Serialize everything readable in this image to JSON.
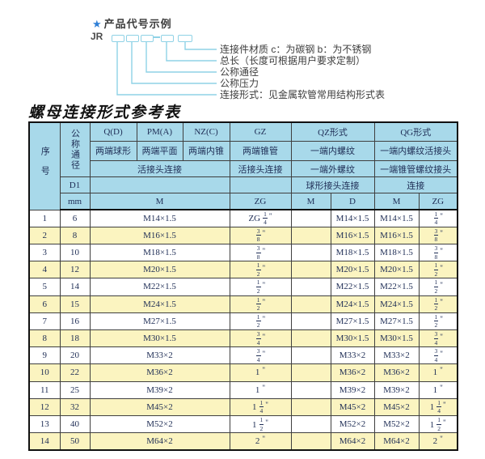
{
  "diagram": {
    "star": "★",
    "title": "产品代号示例",
    "code_prefix": "JR",
    "labels": [
      "连接件材质  c：为碳钢  b：为不锈钢",
      "总长（长度可根据用户要求定制）",
      "公称通径",
      "公称压力",
      "连接形式：见金属软管常用结构形式表"
    ]
  },
  "table_title": "螺母连接形式参考表",
  "table": {
    "header": {
      "seq": "序号",
      "dn": "公称通径",
      "d1": "D1",
      "mm": "mm",
      "col_q_code": "Q(D)",
      "col_q_desc": "两端球形",
      "col_pm_code": "PM(A)",
      "col_pm_desc": "两端平面",
      "col_nz_code": "NZ(C)",
      "col_nz_desc": "两端内锥",
      "qpn_row3": "活接头连接",
      "qpn_unit": "M",
      "gz_code": "GZ",
      "gz_desc": "两端锥管",
      "gz_row3": "活接头连接",
      "gz_unit": "ZG",
      "qz_code": "QZ形式",
      "qz_desc1": "一端内螺纹",
      "qz_desc2": "一端外螺纹",
      "qz_desc3": "球形接头连接",
      "qz_unit_m": "M",
      "qz_unit_d": "D",
      "qg_code": "QG形式",
      "qg_desc1": "一端内螺纹活接头",
      "qg_desc2": "一端锥管螺纹接头",
      "qg_desc3": "连接",
      "qg_unit_m": "M",
      "qg_unit_zg": "ZG"
    },
    "rows": [
      {
        "seq": "1",
        "dn": "6",
        "m": "M14×1.5",
        "gz": "ZG 1/4\"",
        "qz_m": "",
        "qz_d": "M14×1.5",
        "qg_m": "M14×1.5",
        "qg_zg": "1/4\""
      },
      {
        "seq": "2",
        "dn": "8",
        "m": "M16×1.5",
        "gz": "3/8\"",
        "qz_m": "",
        "qz_d": "M16×1.5",
        "qg_m": "M16×1.5",
        "qg_zg": "3/8\""
      },
      {
        "seq": "3",
        "dn": "10",
        "m": "M18×1.5",
        "gz": "3/8\"",
        "qz_m": "",
        "qz_d": "M18×1.5",
        "qg_m": "M18×1.5",
        "qg_zg": "3/8\""
      },
      {
        "seq": "4",
        "dn": "12",
        "m": "M20×1.5",
        "gz": "1/2\"",
        "qz_m": "",
        "qz_d": "M20×1.5",
        "qg_m": "M20×1.5",
        "qg_zg": "1/2\""
      },
      {
        "seq": "5",
        "dn": "14",
        "m": "M22×1.5",
        "gz": "1/2\"",
        "qz_m": "",
        "qz_d": "M22×1.5",
        "qg_m": "M22×1.5",
        "qg_zg": "1/2\""
      },
      {
        "seq": "6",
        "dn": "15",
        "m": "M24×1.5",
        "gz": "1/2\"",
        "qz_m": "",
        "qz_d": "M24×1.5",
        "qg_m": "M24×1.5",
        "qg_zg": "1/2\""
      },
      {
        "seq": "7",
        "dn": "16",
        "m": "M27×1.5",
        "gz": "1/2\"",
        "qz_m": "",
        "qz_d": "M27×1.5",
        "qg_m": "M27×1.5",
        "qg_zg": "1/2\""
      },
      {
        "seq": "8",
        "dn": "18",
        "m": "M30×1.5",
        "gz": "3/4\"",
        "qz_m": "",
        "qz_d": "M30×1.5",
        "qg_m": "M30×1.5",
        "qg_zg": "3/4\""
      },
      {
        "seq": "9",
        "dn": "20",
        "m": "M33×2",
        "gz": "3/4\"",
        "qz_m": "",
        "qz_d": "M33×2",
        "qg_m": "M33×2",
        "qg_zg": "3/4\""
      },
      {
        "seq": "10",
        "dn": "22",
        "m": "M36×2",
        "gz": "1\"",
        "qz_m": "",
        "qz_d": "M36×2",
        "qg_m": "M36×2",
        "qg_zg": "1\""
      },
      {
        "seq": "11",
        "dn": "25",
        "m": "M39×2",
        "gz": "1\"",
        "qz_m": "",
        "qz_d": "M39×2",
        "qg_m": "M39×2",
        "qg_zg": "1\""
      },
      {
        "seq": "12",
        "dn": "32",
        "m": "M45×2",
        "gz": "1 1/4\"",
        "qz_m": "",
        "qz_d": "M45×2",
        "qg_m": "M45×2",
        "qg_zg": "1 1/4\""
      },
      {
        "seq": "13",
        "dn": "40",
        "m": "M52×2",
        "gz": "1 1/2\"",
        "qz_m": "",
        "qz_d": "M52×2",
        "qg_m": "M52×2",
        "qg_zg": "1 1/2\""
      },
      {
        "seq": "14",
        "dn": "50",
        "m": "M64×2",
        "gz": "2\"",
        "qz_m": "",
        "qz_d": "M64×2",
        "qg_m": "M64×2",
        "qg_zg": "2\""
      }
    ]
  },
  "colors": {
    "header_bg": "#a8d9ea",
    "stripe_bg": "#fbf4c0",
    "diagram_line": "#8fd2e6",
    "star_blue": "#2f7fd6",
    "table_text": "#1e2d55"
  }
}
